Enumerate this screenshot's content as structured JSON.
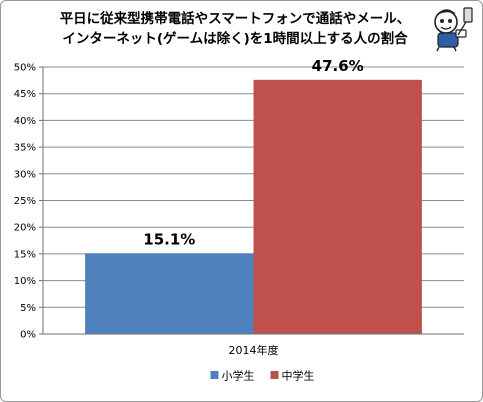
{
  "chart_data": {
    "type": "bar",
    "title_line1": "平日に従来型携帯電話やスマートフォンで通話やメール、",
    "title_line2": "インターネット(ゲームは除く)を1時間以上する人の割合",
    "categories": [
      "2014年度"
    ],
    "series": [
      {
        "name": "小学生",
        "values": [
          15.1
        ],
        "color": "#4f81bd",
        "label": "15.1%"
      },
      {
        "name": "中学生",
        "values": [
          47.6
        ],
        "color": "#c0504d",
        "label": "47.6%"
      }
    ],
    "ylim": [
      0,
      50
    ],
    "yticks": [
      "0%",
      "5%",
      "10%",
      "15%",
      "20%",
      "25%",
      "30%",
      "35%",
      "40%",
      "45%",
      "50%"
    ],
    "grid": true,
    "legend_position": "bottom"
  },
  "colors": {
    "grid": "#8c8c8c",
    "axis": "#6f6f6f"
  },
  "icons": {
    "mascot": "cartoon-character-icon"
  }
}
